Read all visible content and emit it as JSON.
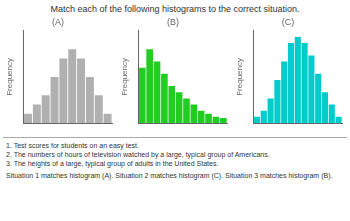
{
  "title": "Match each of the following histograms to the correct situation.",
  "annotations": [
    "1. Test scores for students on an easy test.",
    "2. The numbers of hours of television watched by a large, typical group of Americans.",
    "3. The heights of a large, typical group of adults in the United States.",
    "Situation 1 matches histogram (A). Situation 2 matches histogram (C). Situation 3 matches histogram (B)."
  ],
  "chart_data": [
    {
      "type": "bar",
      "title": "(A)",
      "ylabel": "Frequency",
      "categories": [
        null,
        null,
        null,
        null,
        null,
        null,
        null,
        null,
        null,
        null
      ],
      "values": [
        1,
        2,
        3,
        5,
        7,
        8,
        7,
        5,
        3,
        1
      ],
      "color": "#b0b0b0",
      "ylim": [
        0,
        10
      ],
      "grid": false,
      "tick_labels": false
    },
    {
      "type": "bar",
      "title": "(B)",
      "ylabel": "Frequency",
      "categories": [
        null,
        null,
        null,
        null,
        null,
        null,
        null,
        null,
        null,
        null,
        null,
        null
      ],
      "values": [
        9,
        12,
        10,
        8,
        6,
        5,
        4,
        3,
        2,
        1.5,
        1,
        0.8
      ],
      "color": "#22cc22",
      "ylim": [
        0,
        15
      ],
      "grid": false,
      "tick_labels": false
    },
    {
      "type": "bar",
      "title": "(C)",
      "ylabel": "Frequency",
      "categories": [
        null,
        null,
        null,
        null,
        null,
        null,
        null,
        null,
        null,
        null,
        null,
        null,
        null
      ],
      "values": [
        1,
        2,
        4,
        7,
        10,
        13,
        14,
        13,
        11,
        8,
        5,
        3,
        1
      ],
      "color": "#00cccc",
      "ylim": [
        0,
        15
      ],
      "grid": false,
      "tick_labels": false
    }
  ]
}
